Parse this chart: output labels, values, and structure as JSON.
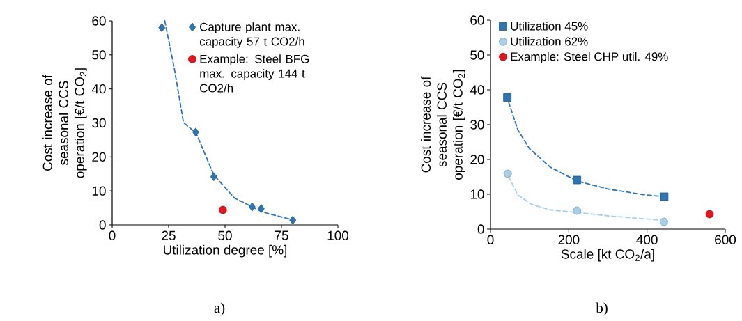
{
  "chart_data": [
    {
      "type": "scatter",
      "xlabel": "Utilization degree [%]",
      "ylabel": "Cost increase of seasonal CCS operation [€/t CO$_{2}$]",
      "xlim": [
        0,
        100
      ],
      "xticks": [
        0,
        25,
        50,
        75,
        100
      ],
      "ylim": [
        0,
        60
      ],
      "yticks": [
        0,
        10,
        20,
        30,
        40,
        50,
        60
      ],
      "legend": "top right",
      "grid": false,
      "annotations": [
        "a)"
      ],
      "series": [
        {
          "name": "Capture plant max. capacity 57 t CO2/h",
          "color": "#2e75b6",
          "marker": "diamond",
          "x": [
            22,
            37,
            45,
            62,
            66,
            80
          ],
          "values": [
            58,
            27.3,
            14.2,
            5.3,
            4.8,
            1.4
          ]
        },
        {
          "name": "Example: Steel BFG max. capacity 144 t CO2/h",
          "color": "#e3141b",
          "marker": "circle",
          "x": [
            49
          ],
          "values": [
            4.4
          ]
        },
        {
          "type": "line",
          "color": "#2e75b6",
          "line_style": "dashed",
          "marker": "none",
          "x": [
            23.3,
            27.5,
            31.6,
            37.2,
            45.0,
            54.2,
            66.6,
            80.5
          ],
          "values": [
            60,
            46.1,
            30.1,
            27.0,
            14.7,
            7.9,
            3.8,
            1.4
          ]
        }
      ]
    },
    {
      "type": "scatter",
      "xlabel": "Scale [kt CO$_{2}$/a]",
      "ylabel": "Cost increase of seasonal CCS operation [€/t CO$_{2}$]",
      "xlim": [
        0,
        600
      ],
      "xticks": [
        0,
        200,
        400,
        600
      ],
      "ylim": [
        0,
        60
      ],
      "yticks": [
        0,
        10,
        20,
        30,
        40,
        50,
        60
      ],
      "legend": "top left",
      "grid": false,
      "annotations": [
        "b)"
      ],
      "series": [
        {
          "name": "Utilization 45%",
          "color": "#2e75b6",
          "marker": "square",
          "x": [
            43,
            221,
            444
          ],
          "values": [
            37.8,
            14.1,
            9.3
          ]
        },
        {
          "name": "Utilization 62%",
          "color": "#a9cfe8",
          "marker": "circle",
          "x": [
            44,
            221,
            443
          ],
          "values": [
            15.9,
            5.3,
            2.1
          ]
        },
        {
          "name": "Example: Steel CHP util. 49%",
          "color": "#e3141b",
          "marker": "circle",
          "x": [
            560
          ],
          "values": [
            4.3
          ]
        },
        {
          "type": "line",
          "color": "#2e75b6",
          "line_style": "dashed",
          "marker": "none",
          "x": [
            46.2,
            69.9,
            99.6,
            152.9,
            221,
            301,
            390,
            443
          ],
          "values": [
            36.5,
            28.5,
            23.1,
            17.8,
            13.8,
            11.5,
            9.9,
            9.3
          ]
        },
        {
          "type": "line",
          "color": "#a9cfe8",
          "line_style": "dashed",
          "marker": "none",
          "x": [
            46.2,
            69.9,
            105.5,
            152.9,
            221,
            301,
            443
          ],
          "values": [
            15.1,
            9.8,
            7.1,
            5.5,
            4.8,
            3.8,
            2.5
          ]
        }
      ]
    }
  ]
}
